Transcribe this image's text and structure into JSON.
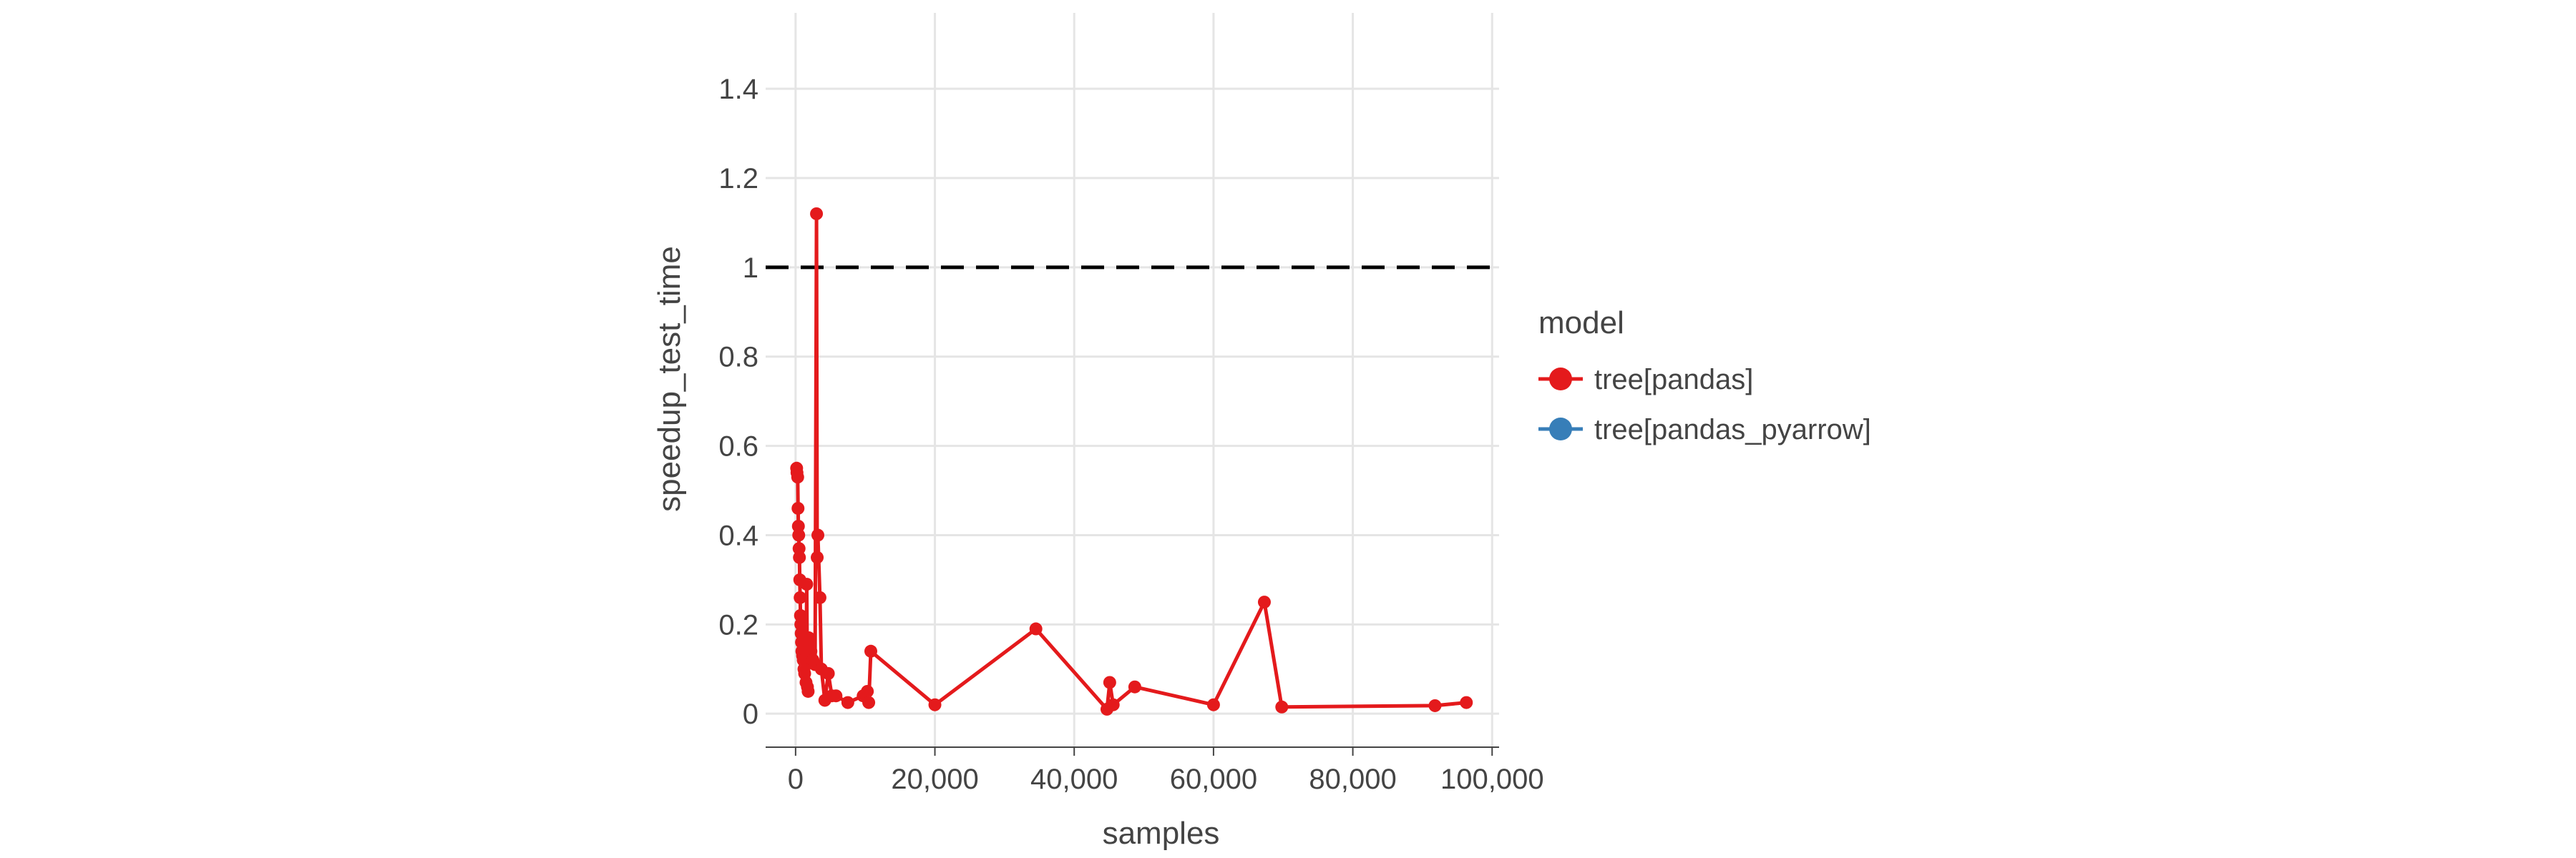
{
  "chart_data": {
    "type": "line",
    "title": "",
    "xlabel": "samples",
    "ylabel": "speedup_test_time",
    "xlim": [
      -4300,
      101000
    ],
    "ylim": [
      -0.075,
      1.57
    ],
    "x_ticks": [
      0,
      20000,
      40000,
      60000,
      80000,
      100000
    ],
    "x_tick_labels": [
      "0",
      "20,000",
      "40,000",
      "60,000",
      "80,000",
      "100,000"
    ],
    "y_ticks": [
      0,
      0.2,
      0.4,
      0.6,
      0.8,
      1.0,
      1.2,
      1.4
    ],
    "y_tick_labels": [
      "0",
      "0.2",
      "0.4",
      "0.6",
      "0.8",
      "1",
      "1.2",
      "1.4"
    ],
    "grid": true,
    "reference_line": {
      "y": 1.0,
      "style": "dashed",
      "color": "#000000"
    },
    "legend": {
      "title": "model",
      "position": "right",
      "entries": [
        {
          "label": "tree[pandas]",
          "color": "#e41a1c"
        },
        {
          "label": "tree[pandas_pyarrow]",
          "color": "#377eb8"
        }
      ]
    },
    "series": [
      {
        "name": "tree[pandas]",
        "color": "#e41a1c",
        "points": [
          [
            150,
            0.55
          ],
          [
            200,
            0.54
          ],
          [
            300,
            0.53
          ],
          [
            350,
            0.46
          ],
          [
            400,
            0.42
          ],
          [
            450,
            0.4
          ],
          [
            500,
            0.37
          ],
          [
            550,
            0.35
          ],
          [
            600,
            0.3
          ],
          [
            650,
            0.26
          ],
          [
            700,
            0.22
          ],
          [
            750,
            0.2
          ],
          [
            800,
            0.18
          ],
          [
            850,
            0.16
          ],
          [
            900,
            0.14
          ],
          [
            1000,
            0.13
          ],
          [
            1100,
            0.12
          ],
          [
            1200,
            0.1
          ],
          [
            1300,
            0.09
          ],
          [
            1500,
            0.07
          ],
          [
            1600,
            0.29
          ],
          [
            1700,
            0.06
          ],
          [
            1800,
            0.05
          ],
          [
            1900,
            0.17
          ],
          [
            2000,
            0.15
          ],
          [
            2200,
            0.14
          ],
          [
            2500,
            0.12
          ],
          [
            2800,
            0.11
          ],
          [
            3000,
            1.12
          ],
          [
            3100,
            0.35
          ],
          [
            3200,
            0.4
          ],
          [
            3500,
            0.26
          ],
          [
            3700,
            0.1
          ],
          [
            4200,
            0.03
          ],
          [
            4700,
            0.09
          ],
          [
            5200,
            0.04
          ],
          [
            5800,
            0.04
          ],
          [
            7500,
            0.025
          ],
          [
            9700,
            0.04
          ],
          [
            10300,
            0.05
          ],
          [
            10500,
            0.025
          ],
          [
            10800,
            0.14
          ],
          [
            20000,
            0.02
          ],
          [
            34500,
            0.19
          ],
          [
            44700,
            0.01
          ],
          [
            45100,
            0.07
          ],
          [
            45600,
            0.02
          ],
          [
            48700,
            0.06
          ],
          [
            60000,
            0.02
          ],
          [
            67300,
            0.25
          ],
          [
            69800,
            0.015
          ],
          [
            91800,
            0.018
          ],
          [
            96300,
            0.025
          ]
        ]
      },
      {
        "name": "tree[pandas_pyarrow]",
        "color": "#377eb8",
        "points": []
      }
    ]
  }
}
